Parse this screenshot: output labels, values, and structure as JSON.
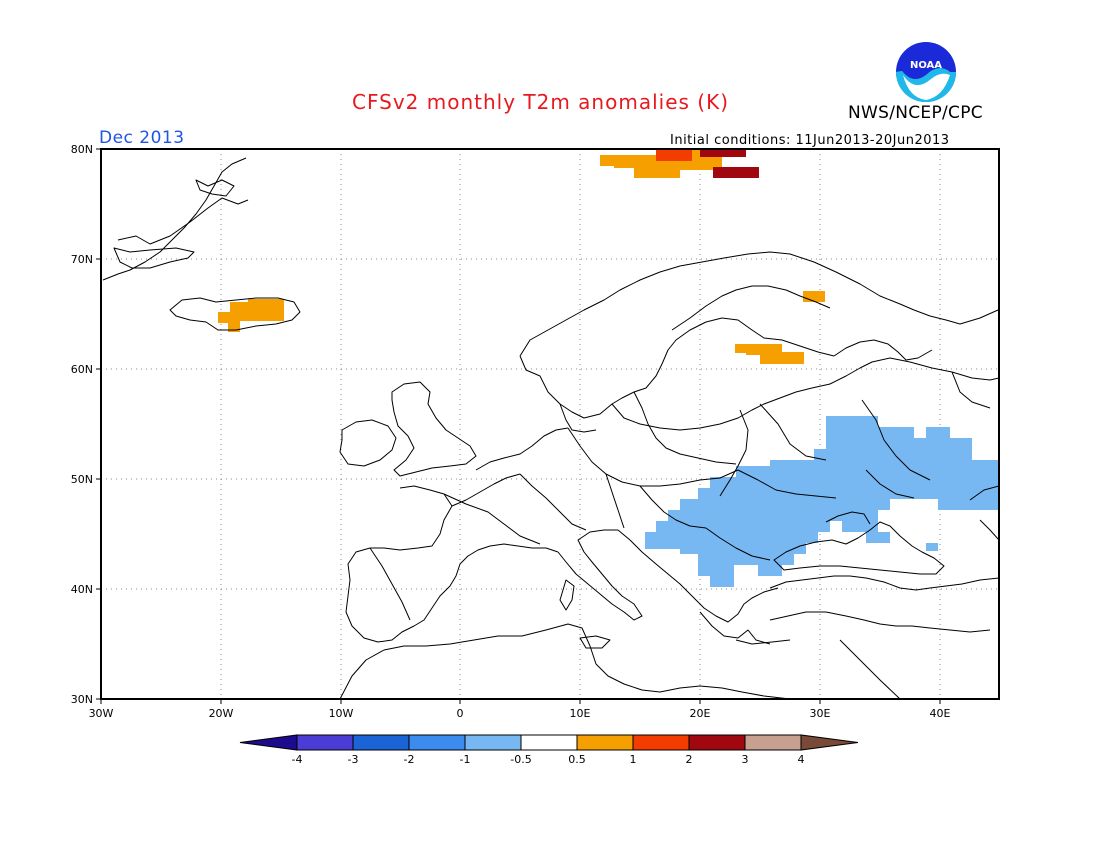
{
  "header": {
    "title": "CFSv2 monthly T2m anomalies (K)",
    "month": "Dec 2013",
    "agency": "NWS/NCEP/CPC",
    "initial_conditions": "Initial conditions: 11Jun2013-20Jun2013",
    "logo_text": "NOAA"
  },
  "map": {
    "lon_range": [
      -30,
      45
    ],
    "lat_range": [
      30,
      80
    ],
    "lat_labels": [
      "80N",
      "70N",
      "60N",
      "50N",
      "40N",
      "30N"
    ],
    "lon_labels": [
      "30W",
      "20W",
      "10W",
      "0",
      "10E",
      "20E",
      "30E",
      "40E"
    ],
    "anomaly_regions": [
      {
        "name": "iceland",
        "category": "0.5 to 1"
      },
      {
        "name": "svalbard",
        "category": "0.5 to 1"
      },
      {
        "name": "svalbard-north",
        "category": "1 to 2"
      },
      {
        "name": "svalbard-east",
        "category": "2 to 3"
      },
      {
        "name": "finland",
        "category": "0.5 to 1"
      },
      {
        "name": "kola",
        "category": "0.5 to 1"
      },
      {
        "name": "eastern-europe",
        "category": "-1 to -0.5"
      }
    ]
  },
  "colorbar": {
    "labels": [
      "-4",
      "-3",
      "-2",
      "-1",
      "-0.5",
      "0.5",
      "1",
      "2",
      "3",
      "4"
    ],
    "colors": [
      "#1c0b8c",
      "#4c3cd6",
      "#1a64d6",
      "#3c8cf0",
      "#78b8f2",
      "#ffffff",
      "#f59f00",
      "#f23c00",
      "#a0070e",
      "#c8a090",
      "#7a4a38"
    ]
  }
}
